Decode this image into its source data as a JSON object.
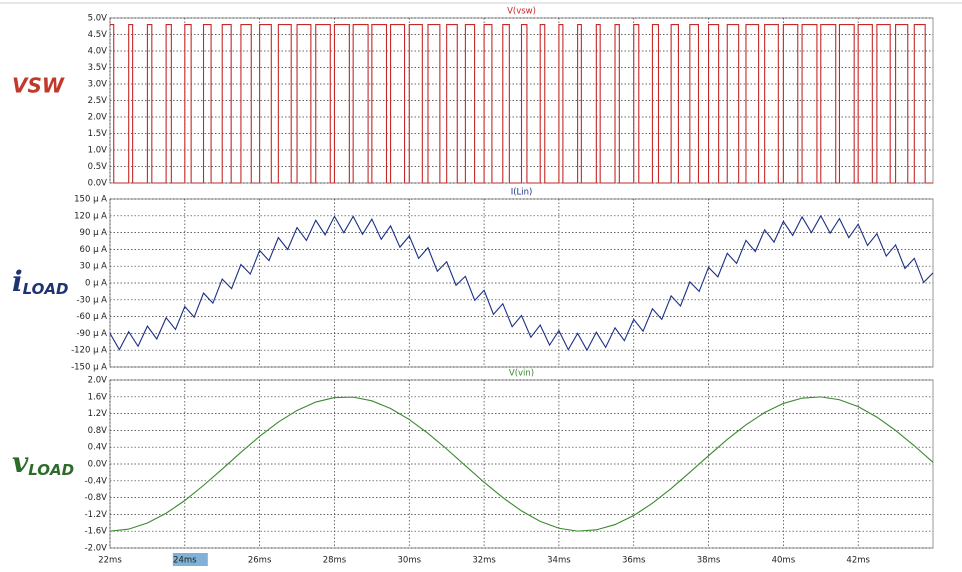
{
  "chart_data": [
    {
      "type": "line",
      "title": "V(vsw)",
      "side_label": "VSW",
      "color": "#c62828",
      "label_color": "#c0392b",
      "step": true,
      "xlim": [
        22,
        44
      ],
      "ylim": [
        0,
        5
      ],
      "yticks": [
        {
          "value": 0,
          "label": "0.0V"
        },
        {
          "value": 0.5,
          "label": "0.5V"
        },
        {
          "value": 1,
          "label": "1.0V"
        },
        {
          "value": 1.5,
          "label": "1.5V"
        },
        {
          "value": 2,
          "label": "2.0V"
        },
        {
          "value": 2.5,
          "label": "2.5V"
        },
        {
          "value": 3,
          "label": "3.0V"
        },
        {
          "value": 3.5,
          "label": "3.5V"
        },
        {
          "value": 4,
          "label": "4.0V"
        },
        {
          "value": 4.5,
          "label": "4.5V"
        },
        {
          "value": 5,
          "label": "5.0V"
        }
      ],
      "x": [
        22,
        22.1,
        22.5,
        22.605,
        23,
        23.118,
        23.5,
        23.64,
        24,
        24.169,
        24.5,
        24.702,
        25,
        25.239,
        25.5,
        25.776,
        26,
        26.312,
        26.5,
        26.844,
        27,
        27.37,
        27.5,
        27.888,
        28,
        28.398,
        28.5,
        28.899,
        29,
        29.391,
        29.5,
        29.874,
        30,
        30.349,
        30.5,
        30.818,
        31,
        31.283,
        31.5,
        31.746,
        32,
        32.209,
        32.5,
        32.675,
        33,
        33.145,
        33.5,
        33.622,
        34,
        34.107,
        34.5,
        34.6,
        35,
        35.103,
        35.5,
        35.615,
        36,
        36.135,
        36.5,
        36.662,
        37,
        37.195,
        37.5,
        37.731,
        38,
        38.269,
        38.5,
        38.805,
        39,
        39.338,
        39.5,
        39.865,
        40,
        40.385,
        40.5,
        40.897,
        41,
        41.4,
        41.5,
        41.893,
        42,
        42.378,
        42.5,
        42.855,
        43,
        43.325,
        43.5,
        43.791
      ],
      "values": [
        4.8,
        0,
        4.8,
        0,
        4.8,
        0,
        4.8,
        0,
        4.8,
        0,
        4.8,
        0,
        4.8,
        0,
        4.8,
        0,
        4.8,
        0,
        4.8,
        0,
        4.8,
        0,
        4.8,
        0,
        4.8,
        0,
        4.8,
        0,
        4.8,
        0,
        4.8,
        0,
        4.8,
        0,
        4.8,
        0,
        4.8,
        0,
        4.8,
        0,
        4.8,
        0,
        4.8,
        0,
        4.8,
        0,
        4.8,
        0,
        4.8,
        0,
        4.8,
        0,
        4.8,
        0,
        4.8,
        0,
        4.8,
        0,
        4.8,
        0,
        4.8,
        0,
        4.8,
        0,
        4.8,
        0,
        4.8,
        0,
        4.8,
        0,
        4.8,
        0,
        4.8,
        0,
        4.8,
        0,
        4.8,
        0,
        4.8,
        0,
        4.8,
        0,
        4.8,
        0,
        4.8,
        0,
        4.8,
        0
      ]
    },
    {
      "type": "line",
      "title": "I(Lin)",
      "side_label": "i",
      "side_label_sub": "LOAD",
      "color": "#1c2f86",
      "label_color": "#1f3370",
      "xlim": [
        22,
        44
      ],
      "ylim": [
        -150,
        150
      ],
      "yticks": [
        {
          "value": -150,
          "label": "-150 μ A"
        },
        {
          "value": -120,
          "label": "-120 μ A"
        },
        {
          "value": -90,
          "label": "-90 μ A"
        },
        {
          "value": -60,
          "label": "-60 μ A"
        },
        {
          "value": -30,
          "label": "-30 μ A"
        },
        {
          "value": 0,
          "label": "0 μ A"
        },
        {
          "value": 30,
          "label": "30 μ A"
        },
        {
          "value": 60,
          "label": "60 μ A"
        },
        {
          "value": 90,
          "label": "90 μ A"
        },
        {
          "value": 120,
          "label": "120 μ A"
        },
        {
          "value": 150,
          "label": "150 μ A"
        }
      ],
      "x": [
        22,
        22.25,
        22.5,
        22.75,
        23,
        23.25,
        23.5,
        23.75,
        24,
        24.25,
        24.5,
        24.75,
        25,
        25.25,
        25.5,
        25.75,
        26,
        26.25,
        26.5,
        26.75,
        27,
        27.25,
        27.5,
        27.75,
        28,
        28.25,
        28.5,
        28.75,
        29,
        29.25,
        29.5,
        29.75,
        30,
        30.25,
        30.5,
        30.75,
        31,
        31.25,
        31.5,
        31.75,
        32,
        32.25,
        32.5,
        32.75,
        33,
        33.25,
        33.5,
        33.75,
        34,
        34.25,
        34.5,
        34.75,
        35,
        35.25,
        35.5,
        35.75,
        36,
        36.25,
        36.5,
        36.75,
        37,
        37.25,
        37.5,
        37.75,
        38,
        38.25,
        38.5,
        38.75,
        39,
        39.25,
        39.5,
        39.75,
        40,
        40.25,
        40.5,
        40.75,
        41,
        41.25,
        41.5,
        41.75,
        42,
        42.25,
        42.5,
        42.75,
        43,
        43.25,
        43.5,
        43.75,
        44
      ],
      "values": [
        -90,
        -119,
        -87,
        -113,
        -77,
        -100,
        -62,
        -83,
        -42,
        -61,
        -18,
        -36,
        7,
        -10,
        33,
        16,
        58,
        40,
        81,
        60,
        99,
        76,
        112,
        86,
        119,
        90,
        119,
        87,
        114,
        78,
        102,
        64,
        84,
        44,
        63,
        21,
        38,
        -4,
        12,
        -31,
        -13,
        -56,
        -37,
        -78,
        -58,
        -97,
        -75,
        -111,
        -85,
        -119,
        -90,
        -120,
        -88,
        -115,
        -80,
        -103,
        -65,
        -86,
        -46,
        -65,
        -23,
        -41,
        2,
        -15,
        28,
        11,
        53,
        35,
        76,
        56,
        95,
        73,
        110,
        85,
        118,
        90,
        120,
        89,
        115,
        81,
        105,
        67,
        88,
        48,
        68,
        26,
        44,
        1,
        18
      ]
    },
    {
      "type": "line",
      "title": "V(vin)",
      "side_label": "v",
      "side_label_sub": "LOAD",
      "color": "#3a8a2e",
      "label_color": "#2e6b2a",
      "xlim": [
        22,
        44
      ],
      "ylim": [
        -2,
        2
      ],
      "yticks": [
        {
          "value": -2,
          "label": "-2.0V"
        },
        {
          "value": -1.6,
          "label": "-1.6V"
        },
        {
          "value": -1.2,
          "label": "-1.2V"
        },
        {
          "value": -0.8,
          "label": "-0.8V"
        },
        {
          "value": -0.4,
          "label": "-0.4V"
        },
        {
          "value": 0,
          "label": "0.0V"
        },
        {
          "value": 0.4,
          "label": "0.4V"
        },
        {
          "value": 0.8,
          "label": "0.8V"
        },
        {
          "value": 1.2,
          "label": "1.2V"
        },
        {
          "value": 1.6,
          "label": "1.6V"
        },
        {
          "value": 2,
          "label": "2.0V"
        }
      ],
      "xticks": [
        {
          "value": 22,
          "label": "22ms"
        },
        {
          "value": 24,
          "label": "24ms"
        },
        {
          "value": 26,
          "label": "26ms"
        },
        {
          "value": 28,
          "label": "28ms"
        },
        {
          "value": 30,
          "label": "30ms"
        },
        {
          "value": 32,
          "label": "32ms"
        },
        {
          "value": 34,
          "label": "34ms"
        },
        {
          "value": 36,
          "label": "36ms"
        },
        {
          "value": 38,
          "label": "38ms"
        },
        {
          "value": 40,
          "label": "40ms"
        },
        {
          "value": 42,
          "label": "42ms"
        }
      ],
      "x": [
        22,
        22.5,
        23,
        23.5,
        24,
        24.5,
        25,
        25.5,
        26,
        26.5,
        27,
        27.5,
        28,
        28.5,
        29,
        29.5,
        30,
        30.5,
        31,
        31.5,
        32,
        32.5,
        33,
        33.5,
        34,
        34.5,
        35,
        35.5,
        36,
        36.5,
        37,
        37.5,
        38,
        38.5,
        39,
        39.5,
        40,
        40.5,
        41,
        41.5,
        42,
        42.5,
        43,
        43.5,
        44
      ],
      "values": [
        -1.6,
        -1.55,
        -1.405,
        -1.173,
        -0.869,
        -0.509,
        -0.12,
        0.278,
        0.658,
        0.998,
        1.275,
        1.475,
        1.582,
        1.592,
        1.504,
        1.322,
        1.058,
        0.73,
        0.357,
        -0.04,
        -0.434,
        -0.8,
        -1.117,
        -1.365,
        -1.53,
        -1.598,
        -1.568,
        -1.442,
        -1.226,
        -0.934,
        -0.584,
        -0.198,
        0.198,
        0.584,
        0.934,
        1.226,
        1.442,
        1.568,
        1.598,
        1.53,
        1.365,
        1.117,
        0.8,
        0.434,
        0.04
      ]
    }
  ]
}
